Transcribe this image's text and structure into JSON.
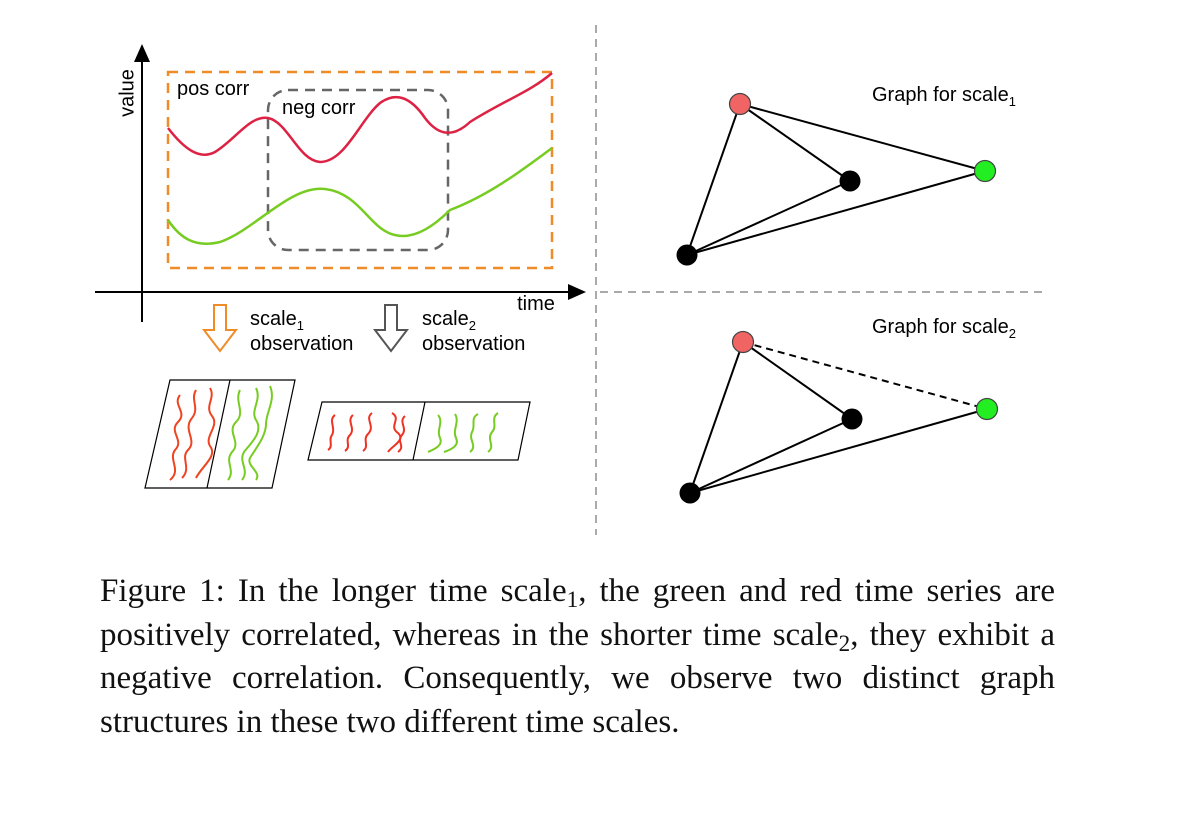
{
  "figure": {
    "y_axis_label": "value",
    "x_axis_label": "time",
    "pos_corr_label": "pos corr",
    "neg_corr_label": "neg corr",
    "scale1_label": "scale",
    "scale1_sub": "1",
    "scale2_label": "scale",
    "scale2_sub": "2",
    "observation_label": "observation",
    "graph1_title": "Graph for scale",
    "graph1_sub": "1",
    "graph2_title": "Graph for scale",
    "graph2_sub": "2",
    "colors": {
      "red_series": "#dd2244",
      "green_series": "#77cc22",
      "orange_box": "#f08c28",
      "gray_box": "#666666",
      "red_node": "#f06464",
      "green_node": "#22ee22",
      "black_node": "#000000"
    }
  },
  "caption": {
    "part1": "Figure 1: In the longer time scale",
    "sub1": "1",
    "part2": ", the green and red time series are positively correlated, whereas in the shorter time scale",
    "sub2": "2",
    "part3": ", they exhibit a negative correlation. Consequently, we observe two distinct graph structures in these two different time scales."
  }
}
